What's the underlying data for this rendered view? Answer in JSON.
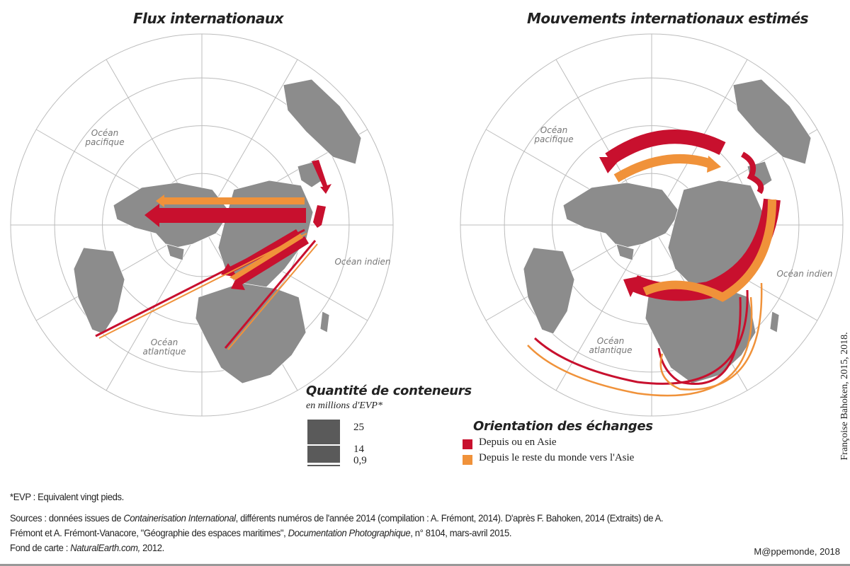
{
  "maps": {
    "left": {
      "title": "Flux internationaux",
      "oceans": {
        "pacific": "Océan pacifique",
        "indian": "Océan indien",
        "atlantic": "Océan atlantique"
      }
    },
    "right": {
      "title": "Mouvements internationaux estimés",
      "oceans": {
        "pacific": "Océan pacifique",
        "indian": "Océan indien",
        "atlantic": "Océan atlantique"
      }
    }
  },
  "legend_quantity": {
    "title": "Quantité de conteneurs",
    "subtitle": "en millions d'EVP*",
    "values": [
      "25",
      "14",
      "0,9"
    ]
  },
  "legend_orientation": {
    "title": "Orientation des échanges",
    "items": [
      {
        "label": "Depuis ou en Asie",
        "color": "#c8102e"
      },
      {
        "label": "Depuis le reste du monde vers l'Asie",
        "color": "#f0923a"
      }
    ]
  },
  "colors": {
    "land": "#8c8c8c",
    "graticule": "#bcbcbc",
    "flow_asia": "#c8102e",
    "flow_world": "#f0923a",
    "legend_bar": "#5a5a5a"
  },
  "footnote": "*EVP : Equivalent vingt pieds.",
  "sources": {
    "s1": "Sources : données issues de ",
    "s2": "Containerisation International",
    "s3": ", différents numéros de l'année 2014 (compilation : A. Frémont, 2014). D'après F. Bahoken, 2014 (Extraits) de A.",
    "s4": "Frémont et A. Frémont-Vanacore, \"Géographie des espaces maritimes\",  ",
    "s5": "Documentation Photographique",
    "s6": ", n° 8104, mars-avril 2015.",
    "s7": "Fond de carte : ",
    "s8": "NaturalEarth.com,",
    "s9": " 2012."
  },
  "credit": "Françoise Bahoken, 2015, 2018.",
  "publisher": "M@ppemonde, 2018"
}
